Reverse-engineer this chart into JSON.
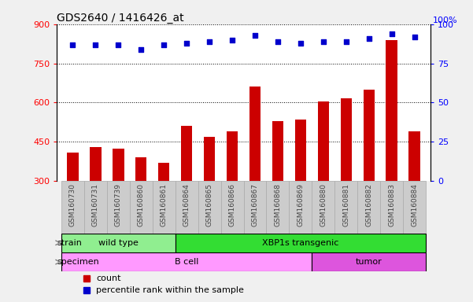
{
  "title": "GDS2640 / 1416426_at",
  "samples": [
    "GSM160730",
    "GSM160731",
    "GSM160739",
    "GSM160860",
    "GSM160861",
    "GSM160864",
    "GSM160865",
    "GSM160866",
    "GSM160867",
    "GSM160868",
    "GSM160869",
    "GSM160880",
    "GSM160881",
    "GSM160882",
    "GSM160883",
    "GSM160884"
  ],
  "counts": [
    410,
    430,
    425,
    390,
    370,
    510,
    470,
    490,
    660,
    530,
    535,
    605,
    615,
    650,
    840,
    490
  ],
  "percentiles": [
    87,
    87,
    87,
    84,
    87,
    88,
    89,
    90,
    93,
    89,
    88,
    89,
    89,
    91,
    94,
    92
  ],
  "bar_color": "#cc0000",
  "dot_color": "#0000cc",
  "ylim_left": [
    300,
    900
  ],
  "ylim_right": [
    0,
    100
  ],
  "yticks_left": [
    300,
    450,
    600,
    750,
    900
  ],
  "yticks_right": [
    0,
    25,
    50,
    75,
    100
  ],
  "grid_values": [
    450,
    600,
    750,
    900
  ],
  "strain_groups": [
    {
      "label": "wild type",
      "start": 0,
      "end": 4,
      "color": "#90ee90"
    },
    {
      "label": "XBP1s transgenic",
      "start": 5,
      "end": 15,
      "color": "#33dd33"
    }
  ],
  "specimen_groups": [
    {
      "label": "B cell",
      "start": 0,
      "end": 10,
      "color": "#ff99ff"
    },
    {
      "label": "tumor",
      "start": 11,
      "end": 15,
      "color": "#dd55dd"
    }
  ],
  "strain_label": "strain",
  "specimen_label": "specimen",
  "legend_count_label": "count",
  "legend_pct_label": "percentile rank within the sample",
  "xticklabel_bg": "#cccccc",
  "fig_bg": "#f0f0f0",
  "plot_bg": "#ffffff"
}
